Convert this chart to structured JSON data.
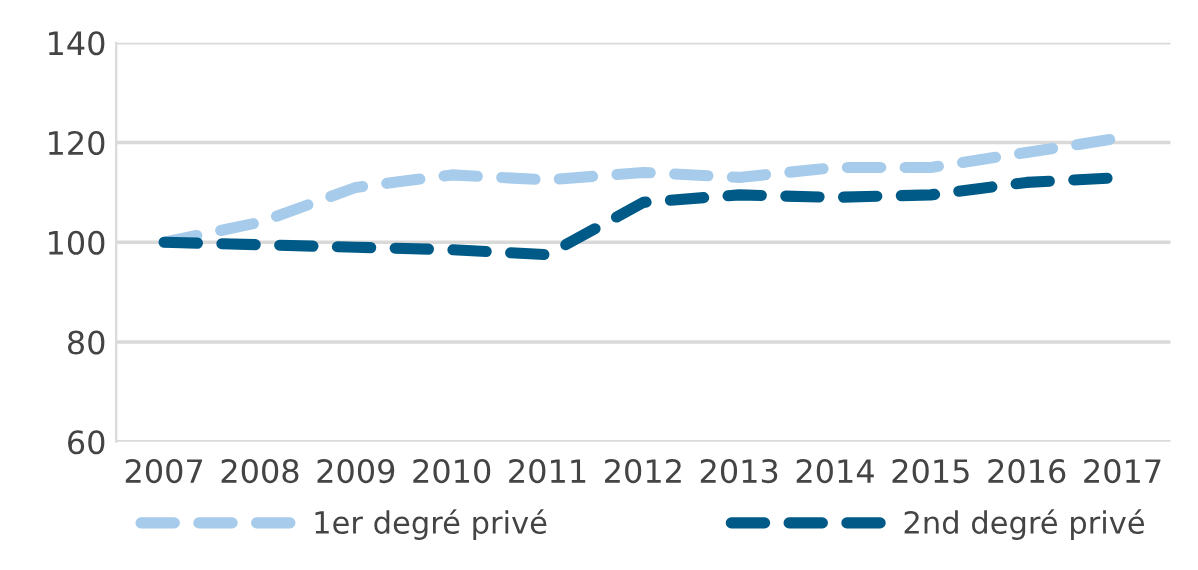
{
  "chart_data": {
    "type": "line",
    "categories": [
      "2007",
      "2008",
      "2009",
      "2010",
      "2011",
      "2012",
      "2013",
      "2014",
      "2015",
      "2016",
      "2017"
    ],
    "series": [
      {
        "name": "1er degré privé",
        "color": "#a7cbea",
        "values": [
          100,
          104,
          111,
          113.5,
          112.5,
          114,
          113,
          115,
          115,
          118,
          121
        ]
      },
      {
        "name": "2nd degré privé",
        "color": "#005a87",
        "values": [
          100,
          99.5,
          99,
          98.5,
          97.5,
          108,
          109.5,
          109,
          109.5,
          112,
          113
        ]
      }
    ],
    "ylim": [
      60,
      140
    ],
    "yticks": [
      60,
      80,
      100,
      120,
      140
    ],
    "grid": "y",
    "legend": "bottom",
    "line_style": "dashed",
    "marker": "none"
  }
}
